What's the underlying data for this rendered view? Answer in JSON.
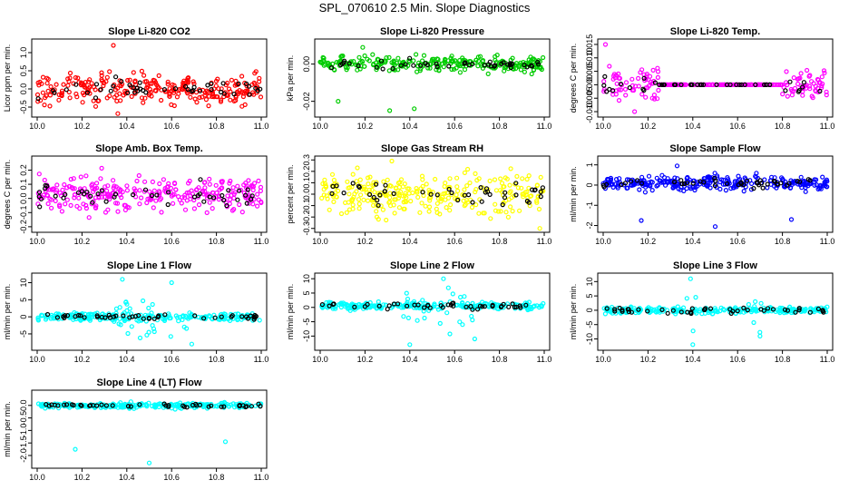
{
  "title": "SPL_070610  2.5 Min. Slope Diagnostics",
  "colors": {
    "black": "#000000"
  },
  "chart_data": [
    {
      "type": "scatter",
      "title": "Slope Li-820 CO2",
      "ylabel": "Licor ppm per min.",
      "xlim": [
        10.0,
        11.0
      ],
      "ylim": [
        -0.7,
        1.3
      ],
      "xticks": [
        "10.0",
        "10.2",
        "10.4",
        "10.6",
        "10.8",
        "11.0"
      ],
      "yticks": [
        "-0.5",
        "0.0",
        "0.5",
        "1.0"
      ],
      "yvals": [
        -0.5,
        0.0,
        0.5,
        1.0
      ],
      "color": "#ff0000",
      "center": 0.0,
      "spread": 0.3,
      "n": 260,
      "outliers": [
        [
          10.34,
          1.2
        ],
        [
          10.36,
          -0.68
        ]
      ]
    },
    {
      "type": "scatter",
      "title": "Slope Li-820 Pressure",
      "ylabel": "kPa per min.",
      "xlim": [
        10.0,
        11.0
      ],
      "ylim": [
        -0.027,
        0.012
      ],
      "xticks": [
        "10.0",
        "10.2",
        "10.4",
        "10.6",
        "10.8",
        "11.0"
      ],
      "yticks": [
        "-0.02",
        "0.00"
      ],
      "yvals": [
        -0.02,
        0.0
      ],
      "color": "#00cc00",
      "center": 0.0,
      "spread": 0.003,
      "n": 260,
      "outliers": [
        [
          10.31,
          -0.025
        ],
        [
          10.42,
          -0.024
        ],
        [
          10.08,
          -0.02
        ],
        [
          10.19,
          0.009
        ]
      ]
    },
    {
      "type": "scatter",
      "title": "Slope Li-820 Temp.",
      "ylabel": "degrees C per min.",
      "xlim": [
        10.0,
        11.0
      ],
      "ylim": [
        -0.011,
        0.016
      ],
      "xticks": [
        "10.0",
        "10.2",
        "10.4",
        "10.6",
        "10.8",
        "11.0"
      ],
      "yticks": [
        "-0.010",
        "-0.005",
        "0.000",
        "0.005",
        "0.010",
        "0.015"
      ],
      "yvals": [
        -0.01,
        -0.005,
        0.0,
        0.005,
        0.01,
        0.015
      ],
      "color": "#ff00ff",
      "center": 0.0,
      "spread": 0.004,
      "n": 240,
      "flat": [
        0.25,
        0.8
      ],
      "outliers": [
        [
          10.01,
          0.015
        ],
        [
          10.14,
          -0.01
        ]
      ]
    },
    {
      "type": "scatter",
      "title": "Slope Amb. Box Temp.",
      "ylabel": "degrees C per min.",
      "xlim": [
        10.0,
        11.0
      ],
      "ylim": [
        -0.22,
        0.28
      ],
      "xticks": [
        "10.0",
        "10.2",
        "10.4",
        "10.6",
        "10.8",
        "11.0"
      ],
      "yticks": [
        "-0.2",
        "-0.1",
        "0.0",
        "0.1",
        "0.2"
      ],
      "yvals": [
        -0.2,
        -0.1,
        0.0,
        0.1,
        0.2
      ],
      "color": "#ff00ff",
      "center": 0.03,
      "spread": 0.09,
      "n": 280,
      "outliers": []
    },
    {
      "type": "scatter",
      "title": "Slope Gas Stream RH",
      "ylabel": "percent per min.",
      "xlim": [
        10.0,
        11.0
      ],
      "ylim": [
        -0.31,
        0.31
      ],
      "xticks": [
        "10.0",
        "10.2",
        "10.4",
        "10.6",
        "10.8",
        "11.0"
      ],
      "yticks": [
        "-0.3",
        "-0.2",
        "-0.1",
        "0.0",
        "0.1",
        "0.2",
        "0.3"
      ],
      "yvals": [
        -0.3,
        -0.2,
        -0.1,
        0.0,
        0.1,
        0.2,
        0.3
      ],
      "color": "#ffff00",
      "center": 0.0,
      "spread": 0.13,
      "n": 280,
      "outliers": [
        [
          10.32,
          0.29
        ],
        [
          10.98,
          -0.3
        ]
      ]
    },
    {
      "type": "scatter",
      "title": "Slope Sample Flow",
      "ylabel": "ml/min per min.",
      "xlim": [
        10.0,
        11.0
      ],
      "ylim": [
        -2.2,
        1.3
      ],
      "xticks": [
        "10.0",
        "10.2",
        "10.4",
        "10.6",
        "10.8",
        "11.0"
      ],
      "yticks": [
        "-2",
        "-1",
        "0",
        "1"
      ],
      "yvals": [
        -2,
        -1,
        0,
        1
      ],
      "color": "#0000ff",
      "center": 0.1,
      "spread": 0.25,
      "n": 280,
      "outliers": [
        [
          10.17,
          -1.75
        ],
        [
          10.5,
          -2.05
        ],
        [
          10.33,
          0.95
        ],
        [
          10.84,
          -1.7
        ]
      ]
    },
    {
      "type": "scatter",
      "title": "Slope Line 1 Flow",
      "ylabel": "ml/min per min.",
      "xlim": [
        10.0,
        11.0
      ],
      "ylim": [
        -9,
        12
      ],
      "xticks": [
        "10.0",
        "10.2",
        "10.4",
        "10.6",
        "10.8",
        "11.0"
      ],
      "yticks": [
        "-5",
        "0",
        "5",
        "10"
      ],
      "yvals": [
        -5,
        0,
        5,
        10
      ],
      "color": "#00ffff",
      "center": 0.0,
      "spread": 0.8,
      "n": 260,
      "burst": [
        10.35,
        10.7,
        5
      ],
      "outliers": [
        [
          10.38,
          11
        ],
        [
          10.6,
          10
        ],
        [
          10.69,
          -8
        ]
      ]
    },
    {
      "type": "scatter",
      "title": "Slope Line 2 Flow",
      "ylabel": "ml/min per min.",
      "xlim": [
        10.0,
        11.0
      ],
      "ylim": [
        -14,
        11
      ],
      "xticks": [
        "10.0",
        "10.2",
        "10.4",
        "10.6",
        "10.8",
        "11.0"
      ],
      "yticks": [
        "-10",
        "-5",
        "0",
        "5",
        "10"
      ],
      "yvals": [
        -10,
        -5,
        0,
        5,
        10
      ],
      "color": "#00ffff",
      "center": 0.5,
      "spread": 0.9,
      "n": 260,
      "burst": [
        10.36,
        10.7,
        6
      ],
      "outliers": [
        [
          10.4,
          -13
        ],
        [
          10.55,
          10
        ],
        [
          10.69,
          -11
        ]
      ]
    },
    {
      "type": "scatter",
      "title": "Slope Line 3 Flow",
      "ylabel": "ml/min per min.",
      "xlim": [
        10.0,
        11.0
      ],
      "ylim": [
        -13,
        12
      ],
      "xticks": [
        "10.0",
        "10.2",
        "10.4",
        "10.6",
        "10.8",
        "11.0"
      ],
      "yticks": [
        "-10",
        "-5",
        "0",
        "5",
        "10"
      ],
      "yvals": [
        -10,
        -5,
        0,
        5,
        10
      ],
      "color": "#00ffff",
      "center": 0.0,
      "spread": 0.8,
      "n": 260,
      "burst": [
        10.36,
        10.42,
        6
      ],
      "burst2": [
        10.64,
        10.72,
        5
      ],
      "outliers": [
        [
          10.39,
          11
        ],
        [
          10.4,
          -12
        ],
        [
          10.7,
          -9
        ]
      ]
    },
    {
      "type": "scatter",
      "title": "Slope Line 4 (LT) Flow",
      "ylabel": "ml/min per min.",
      "xlim": [
        10.0,
        11.0
      ],
      "ylim": [
        -2.4,
        0.5
      ],
      "xticks": [
        "10.0",
        "10.2",
        "10.4",
        "10.6",
        "10.8",
        "11.0"
      ],
      "yticks": [
        "-2.0",
        "-1.5",
        "-1.0",
        "-0.5",
        "0.0"
      ],
      "yvals": [
        -2.0,
        -1.5,
        -1.0,
        -0.5,
        0.0
      ],
      "color": "#00ffff",
      "center": 0.0,
      "spread": 0.08,
      "n": 260,
      "outliers": [
        [
          10.17,
          -1.75
        ],
        [
          10.5,
          -2.3
        ],
        [
          10.84,
          -1.45
        ]
      ]
    }
  ]
}
